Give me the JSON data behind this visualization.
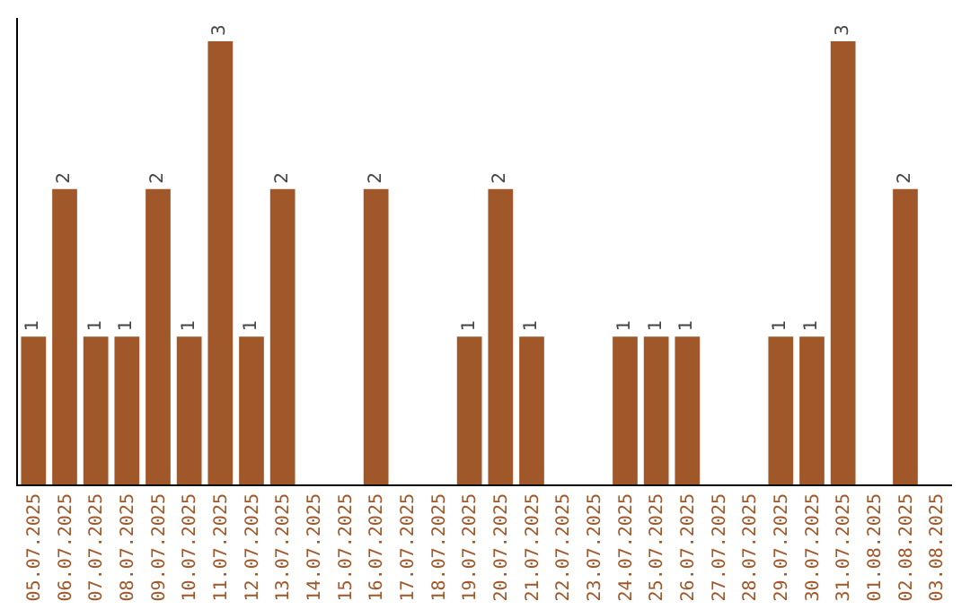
{
  "chart_data": {
    "type": "bar",
    "categories": [
      "05.07.2025",
      "06.07.2025",
      "07.07.2025",
      "08.07.2025",
      "09.07.2025",
      "10.07.2025",
      "11.07.2025",
      "12.07.2025",
      "13.07.2025",
      "14.07.2025",
      "15.07.2025",
      "16.07.2025",
      "17.07.2025",
      "18.07.2025",
      "19.07.2025",
      "20.07.2025",
      "21.07.2025",
      "22.07.2025",
      "23.07.2025",
      "24.07.2025",
      "25.07.2025",
      "26.07.2025",
      "27.07.2025",
      "28.07.2025",
      "29.07.2025",
      "30.07.2025",
      "31.07.2025",
      "01.08.2025",
      "02.08.2025",
      "03.08.2025"
    ],
    "values": [
      1,
      2,
      1,
      1,
      2,
      1,
      3,
      1,
      2,
      0,
      0,
      2,
      0,
      0,
      1,
      2,
      1,
      0,
      0,
      1,
      1,
      1,
      0,
      0,
      1,
      1,
      3,
      0,
      2,
      0
    ],
    "value_labels": [
      "1",
      "2",
      "1",
      "1",
      "2",
      "1",
      "3",
      "1",
      "2",
      null,
      null,
      "2",
      null,
      null,
      "1",
      "2",
      "1",
      null,
      null,
      "1",
      "1",
      "1",
      null,
      null,
      "1",
      "1",
      "3",
      null,
      "2",
      null
    ],
    "color": "#a0582a"
  }
}
